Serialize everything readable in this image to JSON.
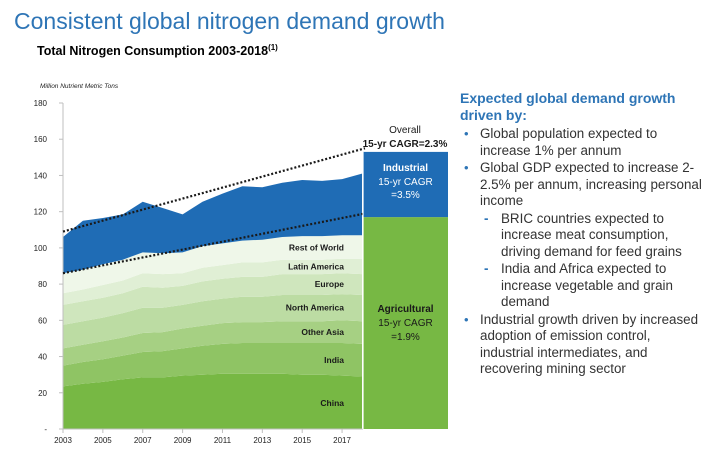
{
  "title": "Consistent global nitrogen demand growth",
  "subtitle": "Total Nitrogen Consumption 2003-2018",
  "subtitle_sup": "(1)",
  "chart_data": {
    "type": "area",
    "ylabel": "Million Nutrient Metric Tons",
    "ylim": [
      0,
      180
    ],
    "yticks": [
      "-",
      "20",
      "40",
      "60",
      "80",
      "100",
      "120",
      "140",
      "160",
      "180"
    ],
    "xtick_labels": [
      "2003",
      "2005",
      "2007",
      "2009",
      "2011",
      "2013",
      "2015",
      "2017"
    ],
    "x": [
      2003,
      2004,
      2005,
      2006,
      2007,
      2008,
      2009,
      2010,
      2011,
      2012,
      2013,
      2014,
      2015,
      2016,
      2017,
      2018
    ],
    "series": [
      {
        "name": "China",
        "color": "#77b844",
        "values": [
          23.5,
          25,
          26,
          27.5,
          28.5,
          28.5,
          29.5,
          30,
          30.5,
          30.5,
          30.5,
          30.5,
          30,
          30,
          29.5,
          29
        ]
      },
      {
        "name": "India",
        "color": "#8fc464",
        "values": [
          11.5,
          12,
          12.5,
          13,
          14,
          14.5,
          15,
          16,
          16.5,
          17,
          17,
          17,
          17.5,
          17.5,
          18,
          18
        ]
      },
      {
        "name": "Other Asia",
        "color": "#a6d083",
        "values": [
          9.5,
          9.5,
          10,
          10,
          10.5,
          10.5,
          11,
          11,
          11.5,
          11.5,
          11.5,
          12,
          12,
          12,
          12.5,
          12.5
        ]
      },
      {
        "name": "North America",
        "color": "#bcdca3",
        "values": [
          13,
          13,
          13,
          13.5,
          14,
          13.5,
          13,
          13.5,
          13.5,
          14,
          14,
          14.5,
          14.5,
          14.5,
          14.5,
          14.5
        ]
      },
      {
        "name": "Europe",
        "color": "#cfe6bd",
        "values": [
          11,
          11,
          11,
          11,
          11.5,
          11,
          10.5,
          11,
          11,
          11,
          11,
          11.5,
          11.5,
          11.5,
          11.5,
          11.5
        ]
      },
      {
        "name": "Latin America",
        "color": "#e0efd5",
        "values": [
          6.5,
          6.5,
          7,
          7,
          7.5,
          7.5,
          7,
          7.5,
          7.5,
          8,
          8,
          8,
          8,
          8,
          8,
          8.5
        ]
      },
      {
        "name": "Rest of World",
        "color": "#eff7e9",
        "values": [
          11,
          11,
          11.5,
          11.5,
          11.5,
          11.5,
          11.5,
          12,
          12,
          12,
          12.5,
          12.5,
          13,
          13,
          13,
          13
        ]
      },
      {
        "name": "Industrial",
        "color": "#1f6cb5",
        "values": [
          20,
          27,
          25.5,
          25,
          28,
          25,
          21,
          24.5,
          27.5,
          30,
          29,
          30,
          31,
          30.5,
          31,
          34
        ]
      }
    ],
    "trendline_overall": [
      [
        2003,
        109
      ],
      [
        2018,
        155
      ]
    ],
    "trendline_agricultural": [
      [
        2003,
        86
      ],
      [
        2018,
        119
      ]
    ],
    "annotations": {
      "overall": [
        "Overall",
        "15-yr CAGR=2.3%"
      ],
      "industrial": [
        "Industrial",
        "15-yr CAGR",
        "=3.5%"
      ],
      "agricultural": [
        "Agricultural",
        "15-yr CAGR",
        "=1.9%"
      ]
    },
    "bar": {
      "industrial_from": 117,
      "industrial_to": 153,
      "agricultural_from": 0,
      "agricultural_to": 117
    },
    "colors": {
      "industrial": "#1f6cb5",
      "agricultural": "#77b844",
      "axis": "#bfbfbf",
      "trend": "#1a1a1a"
    }
  },
  "bullets": {
    "heading": "Expected global demand growth driven by:",
    "items": [
      {
        "text": "Global population expected to increase 1% per annum"
      },
      {
        "text": "Global GDP expected to increase 2-2.5% per annum, increasing personal income",
        "sub": [
          "BRIC countries expected to increase meat consumption, driving demand for feed grains",
          "India and Africa expected to increase vegetable and grain demand"
        ]
      },
      {
        "text": "Industrial growth driven by increased adoption of emission control, industrial intermediates, and recovering mining sector"
      }
    ]
  }
}
